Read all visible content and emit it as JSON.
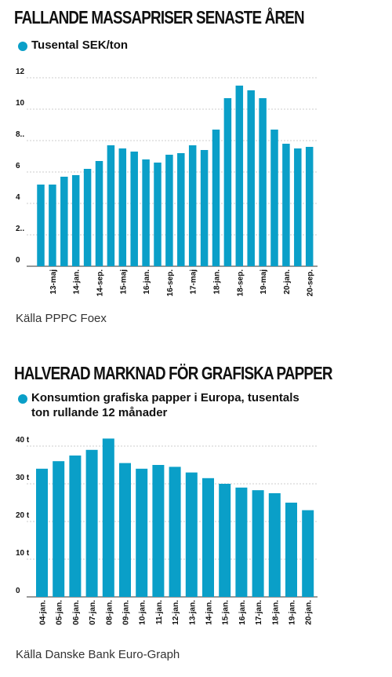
{
  "chart_data": [
    {
      "type": "bar",
      "title": "FALLANDE MASSAPRISER SENASTE ÅREN",
      "categories": [
        null,
        "13-maj",
        null,
        "14-jan.",
        null,
        "14-sep.",
        null,
        "15-maj",
        null,
        "16-jan.",
        null,
        "16-sep.",
        null,
        "17-maj",
        null,
        "18-jan.",
        null,
        "18-sep.",
        null,
        "19-maj",
        null,
        "20-jan.",
        null,
        "20-sep."
      ],
      "series": [
        {
          "name": "Tusental SEK/ton",
          "color": "#0a9fc8",
          "values": [
            5.2,
            5.2,
            5.7,
            5.8,
            6.2,
            6.7,
            7.7,
            7.5,
            7.3,
            6.8,
            6.6,
            7.1,
            7.2,
            7.7,
            7.4,
            8.7,
            10.7,
            11.5,
            11.2,
            10.7,
            8.7,
            7.8,
            7.5,
            7.6
          ]
        }
      ],
      "ylim": [
        0,
        12
      ],
      "yticks": [
        0,
        {
          "value": 2,
          "label": "2.."
        },
        4,
        6,
        {
          "value": 8,
          "label": "8.."
        },
        10,
        12
      ],
      "grid": true,
      "source": "Källa PPPC Foex"
    },
    {
      "type": "bar",
      "title": "HALVERAD MARKNAD FÖR GRAFISKA PAPPER",
      "categories": [
        "04-jan.",
        "05-jan.",
        "06-jan.",
        "07-jan.",
        "08-jan.",
        "09-jan.",
        "10-jan.",
        "11-jan.",
        "12-jan.",
        "13-jan.",
        "14-jan.",
        "15-jan.",
        "16-jan.",
        "17-jan.",
        "18-jan.",
        "19-jan.",
        "20-jan."
      ],
      "series": [
        {
          "name": "Konsumtion grafiska papper i Europa, tusentals ton rullande 12 månader",
          "color": "#0a9fc8",
          "values": [
            34,
            36,
            37.5,
            39,
            42,
            35.5,
            34,
            35,
            34.5,
            33,
            31.5,
            30,
            29,
            28.3,
            27.5,
            25,
            23
          ]
        }
      ],
      "ylim": [
        0,
        40
      ],
      "yticks": [
        0,
        {
          "value": 10,
          "label": "10 t"
        },
        {
          "value": 20,
          "label": "20 t"
        },
        {
          "value": 30,
          "label": "30 t"
        },
        {
          "value": 40,
          "label": "40 t"
        }
      ],
      "grid": true,
      "source": "Källa Danske Bank Euro-Graph"
    }
  ]
}
